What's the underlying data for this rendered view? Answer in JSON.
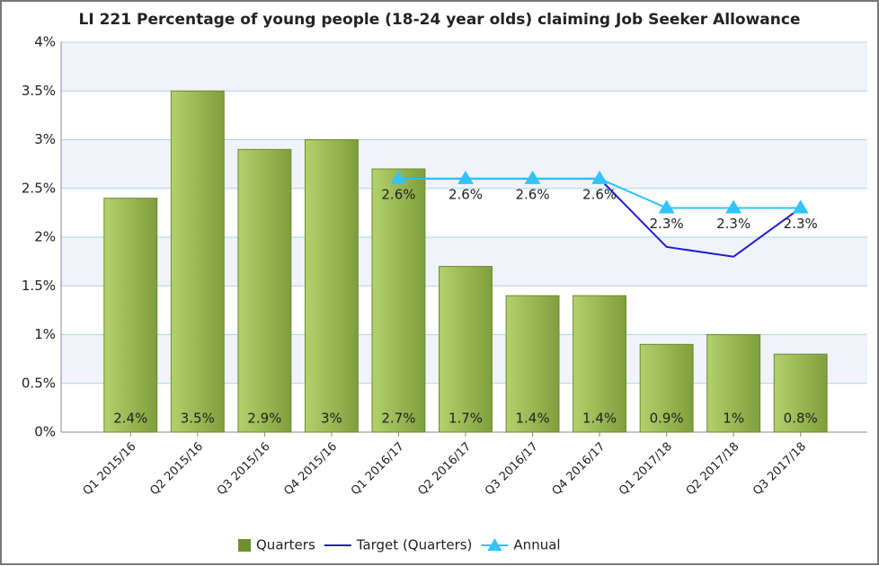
{
  "chart_data": {
    "type": "bar",
    "title": "LI 221 Percentage of young people (18-24 year olds) claiming Job Seeker Allowance",
    "categories": [
      "Q1 2015/16",
      "Q2 2015/16",
      "Q3 2015/16",
      "Q4 2015/16",
      "Q1 2016/17",
      "Q2 2016/17",
      "Q3 2016/17",
      "Q4 2016/17",
      "Q1 2017/18",
      "Q2 2017/18",
      "Q3 2017/18"
    ],
    "series": [
      {
        "name": "Quarters",
        "type": "bar",
        "color": "#8fb04a",
        "values": [
          2.4,
          3.5,
          2.9,
          3,
          2.7,
          1.7,
          1.4,
          1.4,
          0.9,
          1,
          0.8
        ],
        "value_labels": [
          "2.4%",
          "3.5%",
          "2.9%",
          "3%",
          "2.7%",
          "1.7%",
          "1.4%",
          "1.4%",
          "0.9%",
          "1%",
          "0.8%"
        ]
      },
      {
        "name": "Target (Quarters)",
        "type": "line",
        "color": "#1f1fd6",
        "values": [
          null,
          null,
          null,
          null,
          2.6,
          2.6,
          2.6,
          2.6,
          1.9,
          1.8,
          2.3
        ]
      },
      {
        "name": "Annual",
        "type": "line",
        "marker": "triangle",
        "color": "#33c3ff",
        "values": [
          null,
          null,
          null,
          null,
          2.6,
          2.6,
          2.6,
          2.6,
          2.3,
          2.3,
          2.3
        ],
        "value_labels": [
          null,
          null,
          null,
          null,
          "2.6%",
          "2.6%",
          "2.6%",
          "2.6%",
          "2.3%",
          "2.3%",
          "2.3%"
        ]
      }
    ],
    "ylim": [
      0,
      4
    ],
    "yticks": [
      {
        "value": 0,
        "label": "0%"
      },
      {
        "value": 0.5,
        "label": "0.5%"
      },
      {
        "value": 1,
        "label": "1%"
      },
      {
        "value": 1.5,
        "label": "1.5%"
      },
      {
        "value": 2,
        "label": "2%"
      },
      {
        "value": 2.5,
        "label": "2.5%"
      },
      {
        "value": 3,
        "label": "3%"
      },
      {
        "value": 3.5,
        "label": "3.5%"
      },
      {
        "value": 4,
        "label": "4%"
      }
    ],
    "grid": true,
    "legend": "bottom"
  }
}
